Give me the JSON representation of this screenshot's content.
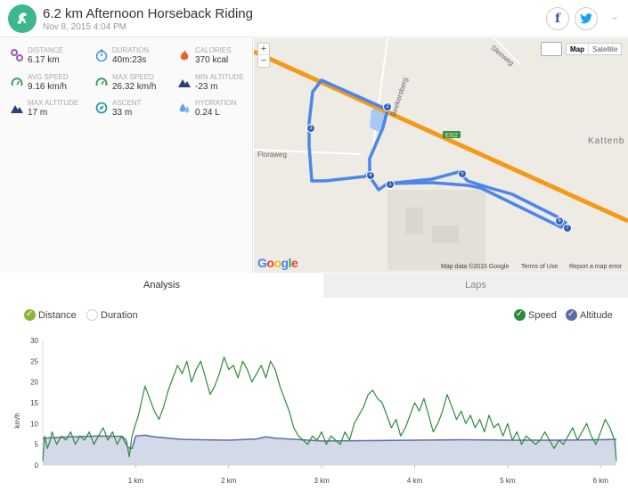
{
  "header": {
    "title": "6.2 km Afternoon Horseback Riding",
    "subtitle": "Nov 8, 2015 4:04 PM",
    "facebook_icon": "f"
  },
  "stats": [
    {
      "label": "DISTANCE",
      "value": "6.17 km",
      "icon": "route-icon",
      "color": "#9b59b6"
    },
    {
      "label": "DURATION",
      "value": "40m:23s",
      "icon": "stopwatch-icon",
      "color": "#3498db"
    },
    {
      "label": "CALORIES",
      "value": "370 kcal",
      "icon": "flame-icon",
      "color": "#e8632b"
    },
    {
      "label": "AVG SPEED",
      "value": "9.16 km/h",
      "icon": "speedometer-icon",
      "color": "#2e9a4e"
    },
    {
      "label": "MAX SPEED",
      "value": "26.32 km/h",
      "icon": "speedometer-icon",
      "color": "#2e9a4e"
    },
    {
      "label": "MIN ALTITUDE",
      "value": "-23 m",
      "icon": "mountain-icon",
      "color": "#2c3e80"
    },
    {
      "label": "MAX ALTITUDE",
      "value": "17 m",
      "icon": "mountain-icon",
      "color": "#2c3e80"
    },
    {
      "label": "ASCENT",
      "value": "33 m",
      "icon": "compass-icon",
      "color": "#1e8bb0"
    },
    {
      "label": "HYDRATION",
      "value": "0.24 L",
      "icon": "water-drops-icon",
      "color": "#3d8fd6"
    }
  ],
  "map": {
    "zoom_in": "+",
    "zoom_out": "−",
    "type_map": "Map",
    "type_satellite": "Satellite",
    "streets": [
      "Beekersberg",
      "Floraweg",
      "Kattenb",
      "E312",
      "Sleeweg"
    ],
    "laps": [
      "1",
      "2",
      "3",
      "4",
      "5",
      "6",
      "7"
    ],
    "logo": "Google",
    "footer": [
      "Map data ©2015 Google",
      "Terms of Use",
      "Report a map error"
    ]
  },
  "tabs": [
    "Analysis",
    "Laps"
  ],
  "toggles": {
    "distance": "Distance",
    "duration": "Duration",
    "speed": "Speed",
    "altitude": "Altitude"
  },
  "colors": {
    "accent": "#3eb78c",
    "speed": "#2e8b3e",
    "altitude": "#5b6ea6",
    "route": "#4c86e8",
    "highway": "#f49a1a"
  },
  "chart_data": {
    "type": "line",
    "ylabel": "km/h",
    "ylim": [
      0,
      30
    ],
    "y_ticks": [
      0,
      5,
      10,
      15,
      20,
      25,
      30
    ],
    "xlim": [
      0,
      6.17
    ],
    "x_ticks": [
      "1 km",
      "2 km",
      "3 km",
      "4 km",
      "5 km",
      "6 km"
    ],
    "x_tick_values": [
      1,
      2,
      3,
      4,
      5,
      6
    ],
    "series": [
      {
        "name": "Speed",
        "x": [
          0,
          0.02,
          0.05,
          0.08,
          0.1,
          0.15,
          0.2,
          0.25,
          0.3,
          0.35,
          0.4,
          0.45,
          0.5,
          0.55,
          0.6,
          0.65,
          0.7,
          0.75,
          0.8,
          0.85,
          0.9,
          0.93,
          0.96,
          1.0,
          1.03,
          1.06,
          1.1,
          1.15,
          1.2,
          1.25,
          1.3,
          1.35,
          1.4,
          1.45,
          1.5,
          1.55,
          1.6,
          1.65,
          1.7,
          1.75,
          1.8,
          1.85,
          1.9,
          1.95,
          2.0,
          2.05,
          2.1,
          2.15,
          2.2,
          2.25,
          2.3,
          2.35,
          2.4,
          2.45,
          2.5,
          2.55,
          2.6,
          2.65,
          2.7,
          2.75,
          2.8,
          2.85,
          2.9,
          2.95,
          3.0,
          3.05,
          3.1,
          3.15,
          3.2,
          3.25,
          3.3,
          3.35,
          3.4,
          3.45,
          3.5,
          3.55,
          3.6,
          3.65,
          3.7,
          3.75,
          3.8,
          3.85,
          3.9,
          3.95,
          4.0,
          4.05,
          4.1,
          4.15,
          4.2,
          4.25,
          4.3,
          4.35,
          4.4,
          4.45,
          4.5,
          4.55,
          4.6,
          4.65,
          4.7,
          4.75,
          4.8,
          4.85,
          4.9,
          4.95,
          5.0,
          5.05,
          5.1,
          5.15,
          5.2,
          5.25,
          5.3,
          5.35,
          5.4,
          5.45,
          5.5,
          5.55,
          5.6,
          5.65,
          5.7,
          5.75,
          5.8,
          5.85,
          5.9,
          5.95,
          6.0,
          6.05,
          6.1,
          6.15,
          6.17
        ],
        "values": [
          1,
          7,
          4,
          6,
          8,
          5,
          7,
          6,
          8,
          5,
          7,
          6,
          8,
          5,
          7,
          9,
          6,
          8,
          5,
          7,
          6,
          2,
          7,
          10,
          12,
          15,
          19,
          16,
          13,
          11,
          14,
          18,
          21,
          24,
          22,
          25,
          20,
          23,
          25,
          21,
          17,
          19,
          22,
          26,
          23,
          24,
          21,
          25,
          23,
          20,
          22,
          24,
          21,
          25,
          23,
          19,
          16,
          13,
          9,
          7,
          6,
          5,
          7,
          6,
          8,
          5,
          7,
          6,
          5,
          8,
          6,
          10,
          12,
          14,
          17,
          18,
          16,
          15,
          12,
          9,
          11,
          7,
          9,
          12,
          15,
          13,
          16,
          12,
          8,
          10,
          13,
          17,
          14,
          11,
          13,
          10,
          12,
          9,
          11,
          8,
          12,
          9,
          10,
          7,
          10,
          6,
          8,
          5,
          7,
          6,
          5,
          6,
          8,
          6,
          4,
          6,
          5,
          7,
          9,
          6,
          8,
          10,
          7,
          5,
          8,
          11,
          9,
          6,
          1
        ]
      },
      {
        "name": "Altitude",
        "x": [
          0,
          0.3,
          0.6,
          0.85,
          0.92,
          0.96,
          1.0,
          1.1,
          1.2,
          1.5,
          2.0,
          2.3,
          2.4,
          2.5,
          3.0,
          3.5,
          4.0,
          4.5,
          5.0,
          5.5,
          6.0,
          6.17
        ],
        "values": [
          6.5,
          6.8,
          7.0,
          6.9,
          4.2,
          4.0,
          7.0,
          7.2,
          6.8,
          6.2,
          6.0,
          6.3,
          6.8,
          6.5,
          5.8,
          5.9,
          6.0,
          6.1,
          6.0,
          6.0,
          6.1,
          6.2
        ]
      }
    ]
  }
}
